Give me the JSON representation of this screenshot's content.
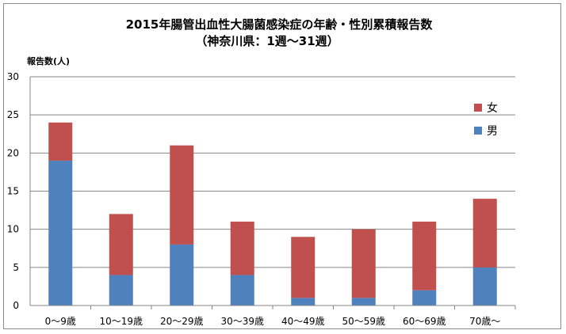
{
  "chart_data": {
    "type": "bar",
    "stacked": true,
    "title": "2015年腸管出血性大腸菌感染症の年齢・性別累積報告数",
    "subtitle": "（神奈川県：1週～31週）",
    "xlabel": "",
    "ylabel": "報告数(人)",
    "ylim": [
      0,
      30
    ],
    "yticks": [
      0,
      5,
      10,
      15,
      20,
      25,
      30
    ],
    "grid": true,
    "legend_position": "right",
    "categories": [
      "0～9歳",
      "10～19歳",
      "20～29歳",
      "30～39歳",
      "40～49歳",
      "50～59歳",
      "60～69歳",
      "70歳～"
    ],
    "series": [
      {
        "name": "男",
        "color": "#4f81bd",
        "values": [
          19,
          4,
          8,
          4,
          1,
          1,
          2,
          5
        ]
      },
      {
        "name": "女",
        "color": "#c0504d",
        "values": [
          5,
          8,
          13,
          7,
          8,
          9,
          9,
          9
        ]
      }
    ]
  }
}
